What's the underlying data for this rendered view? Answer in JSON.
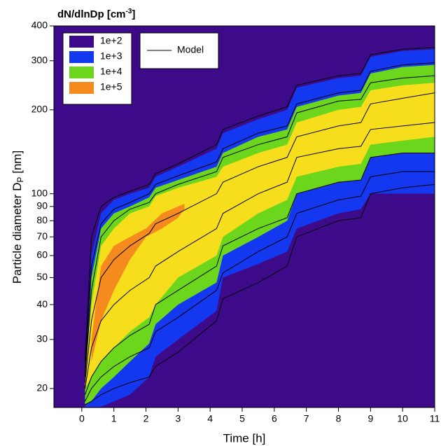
{
  "chart_data": {
    "type": "contour",
    "title": [
      "dN/dlnDp [cm",
      "-3",
      "]"
    ],
    "x_label": "Time [h]",
    "y_label": [
      "Particle diameter D",
      "P",
      " [nm]"
    ],
    "xlim": [
      -0.87,
      11
    ],
    "xticks": [
      0,
      1,
      2,
      3,
      4,
      5,
      6,
      7,
      8,
      9,
      10,
      11
    ],
    "ylim": [
      17.1,
      400
    ],
    "yticks": [
      20,
      30,
      40,
      50,
      60,
      70,
      80,
      90,
      100,
      200,
      300,
      400
    ],
    "log_y": true,
    "background": "#3d0b8a",
    "bands": [
      {
        "name": "1e+3",
        "color": "#1438f0",
        "x": [
          0.1,
          0.3,
          0.6,
          1,
          1.5,
          2.1,
          2.3,
          3,
          4.2,
          4.4,
          5.5,
          6.4,
          6.7,
          8,
          8.7,
          9,
          10,
          11
        ],
        "upper": [
          20,
          60,
          85,
          95,
          100,
          105,
          115,
          125,
          145,
          165,
          185,
          200,
          240,
          260,
          265,
          310,
          325,
          330
        ],
        "lower": [
          17.2,
          17.2,
          17.2,
          18,
          19,
          22,
          26,
          30,
          38,
          50,
          56,
          62,
          75,
          85,
          88,
          100,
          100,
          100
        ]
      },
      {
        "name": "1e+4",
        "color": "#6bd61c",
        "x": [
          0.1,
          0.3,
          0.6,
          1,
          1.5,
          2.1,
          2.3,
          3,
          4.2,
          4.4,
          5.5,
          6.4,
          6.7,
          8,
          8.7,
          9,
          10,
          11
        ],
        "upper": [
          20,
          50,
          75,
          85,
          90,
          97,
          105,
          112,
          125,
          140,
          160,
          170,
          205,
          225,
          230,
          270,
          285,
          290
        ],
        "lower": [
          17.5,
          18,
          20,
          22,
          25,
          29,
          34,
          40,
          48,
          60,
          70,
          80,
          100,
          110,
          112,
          135,
          140,
          140
        ]
      },
      {
        "color": "#f7de1c",
        "x": [
          0.1,
          0.3,
          0.6,
          1,
          1.5,
          2.1,
          2.3,
          3,
          4.2,
          4.4,
          5.5,
          6.4,
          6.7,
          8,
          8.7,
          9,
          10,
          11
        ],
        "upper": [
          22,
          40,
          65,
          75,
          85,
          90,
          98,
          105,
          115,
          125,
          140,
          150,
          180,
          200,
          205,
          235,
          245,
          250
        ],
        "lower": [
          20,
          22,
          25,
          28,
          32,
          36,
          40,
          50,
          60,
          70,
          85,
          95,
          115,
          125,
          128,
          150,
          155,
          160
        ]
      },
      {
        "name": "1e+5",
        "color": "#f58a1e",
        "x": [
          0.3,
          0.6,
          1,
          1.5,
          2,
          2.5,
          3,
          3.2
        ],
        "upper": [
          30,
          55,
          65,
          70,
          75,
          85,
          90,
          92
        ],
        "lower": [
          25,
          35,
          45,
          58,
          70,
          75,
          82,
          88
        ]
      }
    ],
    "legend_extra": {
      "name": "1e+2"
    },
    "model": {
      "name": "Model",
      "color": "#000000",
      "x": [
        0.1,
        0.3,
        0.6,
        1,
        1.5,
        2.1,
        2.3,
        3,
        4.2,
        4.4,
        5.5,
        6.4,
        6.7,
        8,
        8.7,
        9,
        10,
        11
      ],
      "lines": [
        [
          25,
          70,
          90,
          97,
          102,
          108,
          118,
          128,
          150,
          170,
          190,
          205,
          245,
          265,
          270,
          315,
          330,
          335
        ],
        [
          23,
          55,
          78,
          88,
          93,
          100,
          108,
          116,
          130,
          145,
          165,
          175,
          210,
          230,
          235,
          275,
          290,
          295
        ],
        [
          22,
          45,
          70,
          80,
          88,
          93,
          100,
          108,
          120,
          135,
          150,
          160,
          195,
          215,
          218,
          250,
          260,
          265
        ],
        [
          21,
          35,
          50,
          58,
          65,
          72,
          78,
          85,
          100,
          110,
          125,
          135,
          160,
          175,
          180,
          210,
          220,
          230
        ],
        [
          20,
          28,
          35,
          40,
          45,
          50,
          55,
          62,
          75,
          85,
          100,
          110,
          135,
          145,
          148,
          170,
          175,
          180
        ],
        [
          19,
          22,
          25,
          28,
          31,
          34,
          40,
          45,
          55,
          65,
          75,
          82,
          100,
          110,
          112,
          135,
          140,
          140
        ],
        [
          18,
          20,
          22,
          24,
          26,
          28,
          32,
          36,
          45,
          52,
          62,
          70,
          85,
          95,
          98,
          115,
          120,
          120
        ],
        [
          17.5,
          18,
          19,
          20,
          21,
          22,
          24,
          27,
          35,
          42,
          48,
          55,
          70,
          80,
          82,
          100,
          105,
          108
        ]
      ]
    }
  }
}
